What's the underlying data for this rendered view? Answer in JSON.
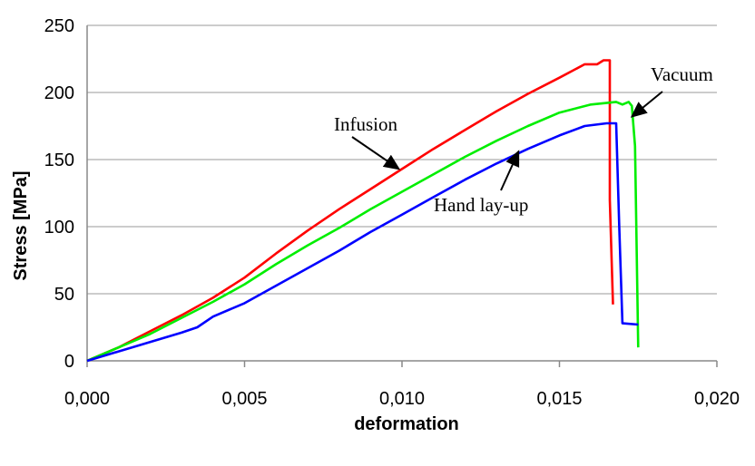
{
  "chart_data": {
    "type": "line",
    "title": "",
    "xlabel": "deformation",
    "ylabel": "Stress [MPa]",
    "xlim": [
      0,
      0.02
    ],
    "ylim": [
      0,
      250
    ],
    "x_ticks": [
      "0,000",
      "0,005",
      "0,010",
      "0,015",
      "0,020"
    ],
    "y_ticks": [
      "0",
      "50",
      "100",
      "150",
      "200",
      "250"
    ],
    "grid": "horizontal",
    "legend": "none",
    "series": [
      {
        "name": "Infusion",
        "color": "#ff0000",
        "points": [
          [
            0.0,
            0
          ],
          [
            0.0005,
            5
          ],
          [
            0.001,
            10
          ],
          [
            0.002,
            22
          ],
          [
            0.003,
            34
          ],
          [
            0.004,
            47
          ],
          [
            0.005,
            62
          ],
          [
            0.006,
            80
          ],
          [
            0.007,
            97
          ],
          [
            0.008,
            113
          ],
          [
            0.009,
            128
          ],
          [
            0.01,
            143
          ],
          [
            0.011,
            158
          ],
          [
            0.012,
            172
          ],
          [
            0.013,
            186
          ],
          [
            0.014,
            199
          ],
          [
            0.015,
            211
          ],
          [
            0.0158,
            221
          ],
          [
            0.0162,
            221
          ],
          [
            0.0164,
            224
          ],
          [
            0.0166,
            224
          ],
          [
            0.0166,
            200
          ],
          [
            0.0166,
            120
          ],
          [
            0.0167,
            42
          ]
        ]
      },
      {
        "name": "Vacuum",
        "color": "#00ee00",
        "points": [
          [
            0.0,
            0
          ],
          [
            0.0005,
            5
          ],
          [
            0.001,
            10
          ],
          [
            0.002,
            20
          ],
          [
            0.003,
            32
          ],
          [
            0.004,
            44
          ],
          [
            0.005,
            57
          ],
          [
            0.006,
            72
          ],
          [
            0.007,
            86
          ],
          [
            0.008,
            99
          ],
          [
            0.009,
            113
          ],
          [
            0.01,
            126
          ],
          [
            0.011,
            139
          ],
          [
            0.012,
            152
          ],
          [
            0.013,
            164
          ],
          [
            0.014,
            175
          ],
          [
            0.015,
            185
          ],
          [
            0.016,
            191
          ],
          [
            0.0168,
            193
          ],
          [
            0.017,
            191
          ],
          [
            0.0172,
            193
          ],
          [
            0.0173,
            190
          ],
          [
            0.0174,
            160
          ],
          [
            0.0175,
            10
          ]
        ]
      },
      {
        "name": "Hand lay-up",
        "color": "#0000ff",
        "points": [
          [
            0.0,
            0
          ],
          [
            0.001,
            7
          ],
          [
            0.002,
            14
          ],
          [
            0.003,
            21
          ],
          [
            0.0035,
            25
          ],
          [
            0.004,
            33
          ],
          [
            0.005,
            43
          ],
          [
            0.006,
            56
          ],
          [
            0.007,
            69
          ],
          [
            0.008,
            82
          ],
          [
            0.009,
            96
          ],
          [
            0.01,
            109
          ],
          [
            0.011,
            122
          ],
          [
            0.012,
            135
          ],
          [
            0.013,
            147
          ],
          [
            0.014,
            158
          ],
          [
            0.015,
            168
          ],
          [
            0.0158,
            175
          ],
          [
            0.0165,
            177
          ],
          [
            0.0168,
            177
          ],
          [
            0.0169,
            100
          ],
          [
            0.017,
            28
          ],
          [
            0.0175,
            27
          ]
        ]
      }
    ],
    "annotations": [
      {
        "text": "Infusion",
        "series": "Infusion",
        "at": [
          0.0099,
          143
        ]
      },
      {
        "text": "Vacuum",
        "series": "Vacuum",
        "at": [
          0.0173,
          182
        ]
      },
      {
        "text": "Hand lay-up",
        "series": "Hand lay-up",
        "at": [
          0.0137,
          156
        ]
      }
    ]
  }
}
